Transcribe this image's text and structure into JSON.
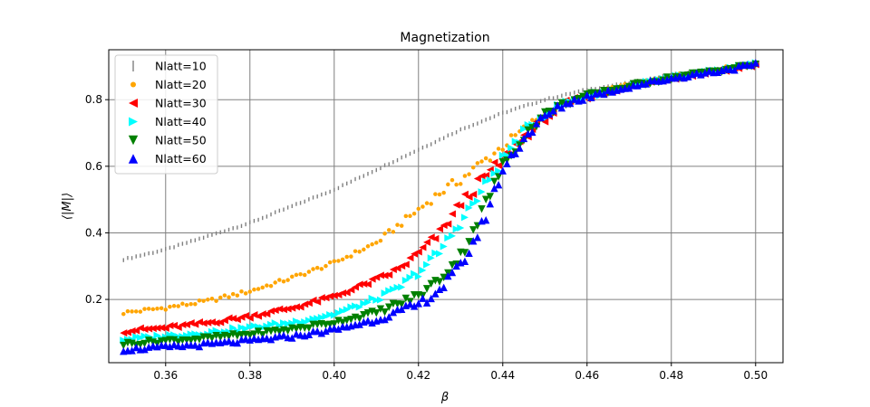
{
  "chart_data": {
    "type": "scatter",
    "title": "Magnetization",
    "xlabel": "β",
    "ylabel": "⟨|M|⟩",
    "xlim": [
      0.3465,
      0.5065
    ],
    "ylim": [
      0.01,
      0.95
    ],
    "x_ticks": [
      0.36,
      0.38,
      0.4,
      0.42,
      0.44,
      0.46,
      0.48,
      0.5
    ],
    "x_tick_labels": [
      "0.36",
      "0.38",
      "0.40",
      "0.42",
      "0.44",
      "0.46",
      "0.48",
      "0.50"
    ],
    "y_ticks": [
      0.2,
      0.4,
      0.6,
      0.8
    ],
    "y_tick_labels": [
      "0.2",
      "0.4",
      "0.6",
      "0.8"
    ],
    "grid": true,
    "grid_color": "#808080",
    "legend_position": "top-left",
    "x_range": [
      0.35,
      0.5
    ],
    "x_step": 0.001,
    "series": [
      {
        "name": "Nlatt=10",
        "color": "#808080",
        "marker": "vline",
        "points": [
          [
            0.35,
            0.32
          ],
          [
            0.36,
            0.35
          ],
          [
            0.37,
            0.39
          ],
          [
            0.38,
            0.43
          ],
          [
            0.39,
            0.48
          ],
          [
            0.4,
            0.53
          ],
          [
            0.41,
            0.59
          ],
          [
            0.42,
            0.65
          ],
          [
            0.43,
            0.71
          ],
          [
            0.44,
            0.76
          ],
          [
            0.45,
            0.8
          ],
          [
            0.46,
            0.83
          ],
          [
            0.47,
            0.85
          ],
          [
            0.48,
            0.875
          ],
          [
            0.49,
            0.89
          ],
          [
            0.5,
            0.905
          ]
        ]
      },
      {
        "name": "Nlatt=20",
        "color": "#ffa500",
        "marker": "circle",
        "points": [
          [
            0.35,
            0.16
          ],
          [
            0.36,
            0.175
          ],
          [
            0.37,
            0.195
          ],
          [
            0.38,
            0.225
          ],
          [
            0.39,
            0.265
          ],
          [
            0.4,
            0.31
          ],
          [
            0.41,
            0.37
          ],
          [
            0.415,
            0.42
          ],
          [
            0.42,
            0.47
          ],
          [
            0.425,
            0.52
          ],
          [
            0.43,
            0.56
          ],
          [
            0.435,
            0.61
          ],
          [
            0.44,
            0.66
          ],
          [
            0.445,
            0.71
          ],
          [
            0.45,
            0.76
          ],
          [
            0.455,
            0.79
          ],
          [
            0.46,
            0.815
          ],
          [
            0.47,
            0.845
          ],
          [
            0.48,
            0.87
          ],
          [
            0.49,
            0.89
          ],
          [
            0.5,
            0.905
          ]
        ]
      },
      {
        "name": "Nlatt=30",
        "color": "#ff0000",
        "marker": "tri-left",
        "points": [
          [
            0.35,
            0.105
          ],
          [
            0.36,
            0.115
          ],
          [
            0.37,
            0.13
          ],
          [
            0.38,
            0.15
          ],
          [
            0.39,
            0.175
          ],
          [
            0.4,
            0.21
          ],
          [
            0.41,
            0.26
          ],
          [
            0.415,
            0.29
          ],
          [
            0.42,
            0.34
          ],
          [
            0.425,
            0.4
          ],
          [
            0.43,
            0.49
          ],
          [
            0.435,
            0.56
          ],
          [
            0.44,
            0.62
          ],
          [
            0.445,
            0.69
          ],
          [
            0.45,
            0.745
          ],
          [
            0.455,
            0.79
          ],
          [
            0.46,
            0.81
          ],
          [
            0.47,
            0.84
          ],
          [
            0.48,
            0.865
          ],
          [
            0.49,
            0.885
          ],
          [
            0.5,
            0.905
          ]
        ]
      },
      {
        "name": "Nlatt=40",
        "color": "#00ffff",
        "marker": "tri-right",
        "points": [
          [
            0.35,
            0.08
          ],
          [
            0.36,
            0.09
          ],
          [
            0.37,
            0.1
          ],
          [
            0.38,
            0.115
          ],
          [
            0.39,
            0.13
          ],
          [
            0.4,
            0.155
          ],
          [
            0.41,
            0.2
          ],
          [
            0.415,
            0.23
          ],
          [
            0.42,
            0.28
          ],
          [
            0.425,
            0.34
          ],
          [
            0.43,
            0.43
          ],
          [
            0.435,
            0.52
          ],
          [
            0.44,
            0.62
          ],
          [
            0.445,
            0.7
          ],
          [
            0.45,
            0.755
          ],
          [
            0.455,
            0.79
          ],
          [
            0.46,
            0.81
          ],
          [
            0.47,
            0.84
          ],
          [
            0.48,
            0.865
          ],
          [
            0.49,
            0.885
          ],
          [
            0.5,
            0.905
          ]
        ]
      },
      {
        "name": "Nlatt=50",
        "color": "#008000",
        "marker": "tri-down",
        "points": [
          [
            0.35,
            0.065
          ],
          [
            0.36,
            0.075
          ],
          [
            0.37,
            0.083
          ],
          [
            0.38,
            0.095
          ],
          [
            0.39,
            0.11
          ],
          [
            0.4,
            0.13
          ],
          [
            0.41,
            0.16
          ],
          [
            0.42,
            0.21
          ],
          [
            0.425,
            0.26
          ],
          [
            0.43,
            0.33
          ],
          [
            0.435,
            0.46
          ],
          [
            0.44,
            0.6
          ],
          [
            0.445,
            0.69
          ],
          [
            0.45,
            0.755
          ],
          [
            0.455,
            0.79
          ],
          [
            0.46,
            0.81
          ],
          [
            0.47,
            0.84
          ],
          [
            0.48,
            0.865
          ],
          [
            0.49,
            0.885
          ],
          [
            0.5,
            0.905
          ]
        ]
      },
      {
        "name": "Nlatt=60",
        "color": "#0000ff",
        "marker": "tri-up",
        "points": [
          [
            0.35,
            0.05
          ],
          [
            0.36,
            0.058
          ],
          [
            0.37,
            0.066
          ],
          [
            0.38,
            0.077
          ],
          [
            0.39,
            0.09
          ],
          [
            0.4,
            0.11
          ],
          [
            0.41,
            0.14
          ],
          [
            0.42,
            0.185
          ],
          [
            0.425,
            0.23
          ],
          [
            0.43,
            0.3
          ],
          [
            0.435,
            0.42
          ],
          [
            0.44,
            0.59
          ],
          [
            0.445,
            0.685
          ],
          [
            0.45,
            0.75
          ],
          [
            0.455,
            0.79
          ],
          [
            0.46,
            0.81
          ],
          [
            0.47,
            0.84
          ],
          [
            0.48,
            0.865
          ],
          [
            0.49,
            0.885
          ],
          [
            0.5,
            0.905
          ]
        ]
      }
    ]
  }
}
